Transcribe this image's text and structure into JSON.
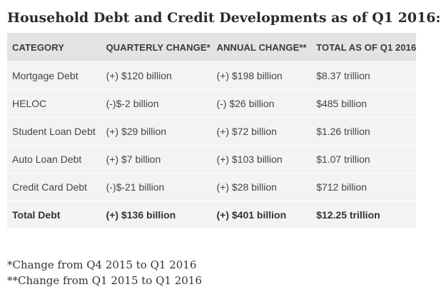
{
  "title": "Household Debt and Credit Developments as of Q1 2016:",
  "table": {
    "headers": [
      "CATEGORY",
      "QUARTERLY CHANGE*",
      "ANNUAL CHANGE**",
      "TOTAL AS OF Q1 2016"
    ],
    "rows": [
      [
        "Mortgage Debt",
        "(+) $120 billion",
        "(+) $198 billion",
        "$8.37 trillion"
      ],
      [
        "HELOC",
        "(-)$-2 billion",
        "(-) $26 billion",
        "$485 billion"
      ],
      [
        "Student Loan Debt",
        "(+) $29 billion",
        "(+) $72 billion",
        "$1.26 trillion"
      ],
      [
        "Auto Loan Debt",
        "(+) $7 billion",
        "(+) $103 billion",
        "$1.07 trillion"
      ],
      [
        "Credit Card Debt",
        "(-)$-21 billion",
        "(+) $28 billion",
        "$712 billion"
      ]
    ],
    "total": [
      "Total Debt",
      "(+) $136 billion",
      "(+) $401 billion",
      "$12.25 trillion"
    ]
  },
  "footnotes": [
    "*Change from Q4 2015 to Q1 2016",
    "**Change from Q1 2015 to Q1 2016"
  ]
}
